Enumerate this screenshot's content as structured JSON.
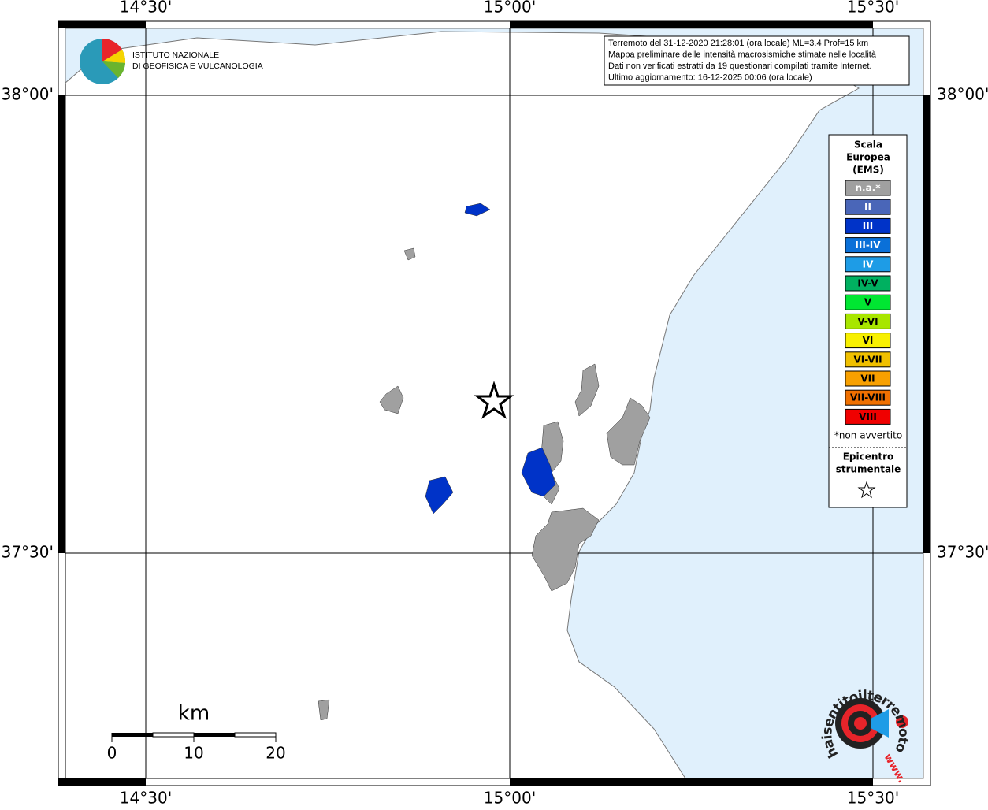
{
  "header": {
    "info_lines": [
      "Terremoto del 31-12-2020 21:28:01 (ora locale) ML=3.4 Prof=15 km",
      "Mappa preliminare delle intensità macrosismiche stimate nelle località",
      "Dati non verificati estratti da 19 questionari compilati tramite Internet.",
      "Ultimo aggiornamento: 16-12-2025 00:06 (ora locale)"
    ]
  },
  "logo": {
    "lines": [
      "ISTITUTO NAZIONALE",
      "DI GEOFISICA E VULCANOLOGIA"
    ]
  },
  "axes": {
    "lon_labels": [
      "14°30'",
      "15°00'",
      "15°30'"
    ],
    "lat_labels": [
      "38°00'",
      "37°30'"
    ]
  },
  "legend": {
    "title_lines": [
      "Scala",
      "Europea",
      "(EMS)"
    ],
    "items": [
      {
        "label": "n.a.*",
        "color": "#a0a0a0"
      },
      {
        "label": "II",
        "color": "#4a66b8"
      },
      {
        "label": "III",
        "color": "#0033c8"
      },
      {
        "label": "III-IV",
        "color": "#0a70d8"
      },
      {
        "label": "IV",
        "color": "#1e9ce6"
      },
      {
        "label": "IV-V",
        "color": "#00b060"
      },
      {
        "label": "V",
        "color": "#00e632"
      },
      {
        "label": "V-VI",
        "color": "#a8e600"
      },
      {
        "label": "VI",
        "color": "#f8f000"
      },
      {
        "label": "VI-VII",
        "color": "#f0c000"
      },
      {
        "label": "VII",
        "color": "#f8a000"
      },
      {
        "label": "VII-VIII",
        "color": "#f07000"
      },
      {
        "label": "VIII",
        "color": "#f00000"
      }
    ],
    "note": "*non avvertito",
    "epicenter_lines": [
      "Epicentro",
      "strumentale"
    ]
  },
  "scale_bar": {
    "unit": "km",
    "labels": [
      0,
      10,
      20
    ]
  },
  "badge": {
    "text": "haisentitoilterremoto.it",
    "www": "www."
  }
}
